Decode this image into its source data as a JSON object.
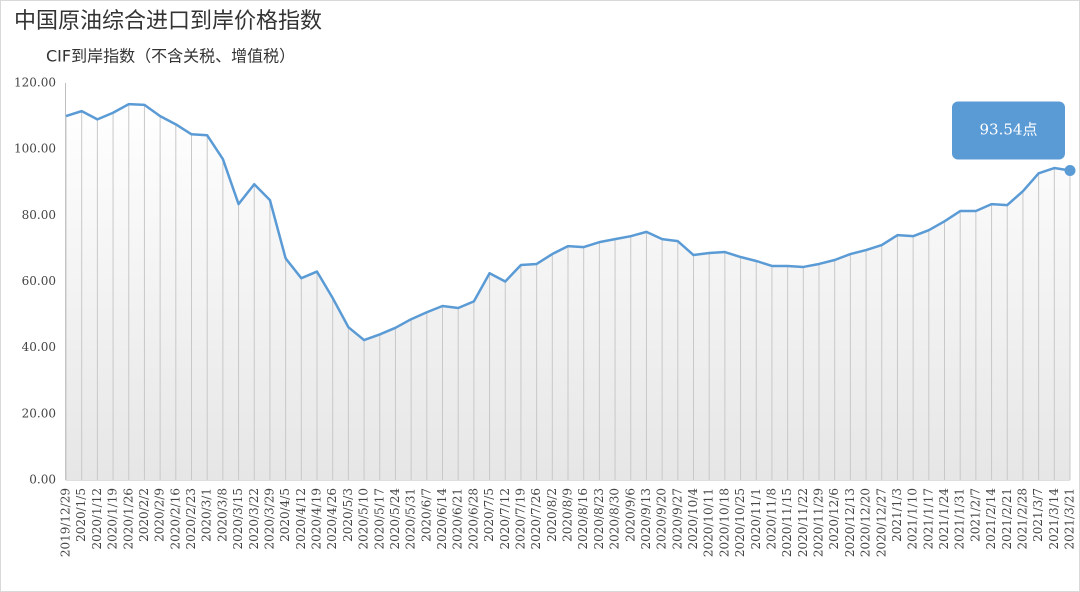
{
  "chart_data": {
    "type": "line",
    "title": "中国原油综合进口到岸价格指数",
    "subtitle": "CIF到岸指数（不含关税、增值税）",
    "categories": [
      "2019/12/29",
      "2020/1/5",
      "2020/1/12",
      "2020/1/19",
      "2020/1/26",
      "2020/2/2",
      "2020/2/9",
      "2020/2/16",
      "2020/2/23",
      "2020/3/1",
      "2020/3/8",
      "2020/3/15",
      "2020/3/22",
      "2020/3/29",
      "2020/4/5",
      "2020/4/12",
      "2020/4/19",
      "2020/4/26",
      "2020/5/3",
      "2020/5/10",
      "2020/5/17",
      "2020/5/24",
      "2020/5/31",
      "2020/6/7",
      "2020/6/14",
      "2020/6/21",
      "2020/6/28",
      "2020/7/5",
      "2020/7/12",
      "2020/7/19",
      "2020/7/26",
      "2020/8/2",
      "2020/8/9",
      "2020/8/16",
      "2020/8/23",
      "2020/8/30",
      "2020/9/6",
      "2020/9/13",
      "2020/9/20",
      "2020/9/27",
      "2020/10/4",
      "2020/10/11",
      "2020/10/18",
      "2020/10/25",
      "2020/11/1",
      "2020/11/8",
      "2020/11/15",
      "2020/11/22",
      "2020/11/29",
      "2020/12/6",
      "2020/12/13",
      "2020/12/20",
      "2020/12/27",
      "2021/1/3",
      "2021/1/10",
      "2021/1/17",
      "2021/1/24",
      "2021/1/31",
      "2021/2/7",
      "2021/2/14",
      "2021/2/21",
      "2021/2/28",
      "2021/3/7",
      "2021/3/14",
      "2021/3/21"
    ],
    "values": [
      110,
      111.5,
      109,
      111,
      113.6,
      113.4,
      110,
      107.5,
      104.5,
      104.2,
      97,
      83.4,
      89.4,
      84.6,
      67,
      61,
      63,
      55,
      46.2,
      42.3,
      44,
      46,
      48.6,
      50.7,
      52.6,
      52,
      54,
      62.5,
      60,
      65,
      65.3,
      68.3,
      70.7,
      70.4,
      71.9,
      72.8,
      73.7,
      75,
      72.8,
      72.2,
      68,
      68.6,
      68.9,
      67.4,
      66.2,
      64.7,
      64.7,
      64.4,
      65.3,
      66.5,
      68.3,
      69.5,
      71,
      74,
      73.7,
      75.5,
      78.2,
      81.3,
      81.3,
      83.4,
      83.1,
      87.3,
      92.7,
      94.3,
      93.54
    ],
    "value_labels": [
      null,
      null,
      null,
      null,
      null,
      null,
      null,
      null,
      null,
      null,
      null,
      null,
      null,
      null,
      null,
      null,
      null,
      null,
      null,
      null,
      null,
      null,
      null,
      null,
      null,
      null,
      null,
      null,
      null,
      null,
      null,
      null,
      null,
      null,
      null,
      null,
      null,
      null,
      null,
      null,
      null,
      null,
      null,
      null,
      null,
      null,
      null,
      null,
      null,
      null,
      null,
      null,
      null,
      null,
      null,
      null,
      null,
      null,
      null,
      null,
      null,
      null,
      null,
      null,
      "93.54点"
    ],
    "color": "#5b9bd5",
    "ylim": [
      0,
      120
    ],
    "yticks": [
      {
        "value": 0,
        "label": "0.00"
      },
      {
        "value": 20,
        "label": "20.00"
      },
      {
        "value": 40,
        "label": "40.00"
      },
      {
        "value": 60,
        "label": "60.00"
      },
      {
        "value": 80,
        "label": "80.00"
      },
      {
        "value": 100,
        "label": "100.00"
      },
      {
        "value": 120,
        "label": "120.00"
      }
    ]
  }
}
